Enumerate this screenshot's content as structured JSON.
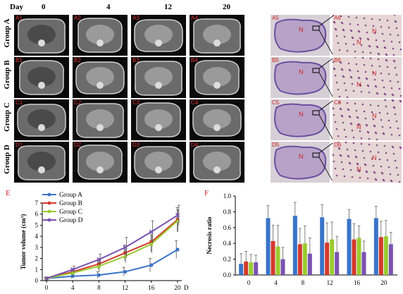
{
  "figure": {
    "day_header": {
      "day_label": "Day",
      "days": [
        "0",
        "4",
        "12",
        "20"
      ]
    },
    "groups": [
      "Group A",
      "Group B",
      "Group C",
      "Group D"
    ],
    "mri_tags": [
      [
        "A1",
        "A2",
        "A3",
        "A4"
      ],
      [
        "B1",
        "B2",
        "B3",
        "B4"
      ],
      [
        "C1",
        "C2",
        "C3",
        "C4"
      ],
      [
        "D1",
        "D2",
        "D3",
        "D4"
      ]
    ],
    "histo_tags": [
      "A5",
      "B5",
      "C5",
      "D5"
    ],
    "zoom_tags": [
      "A6",
      "B6",
      "C6",
      "D6"
    ],
    "necrosis_marker": "N",
    "panel_E": "E",
    "panel_F": "F"
  },
  "chart_data": [
    {
      "type": "line",
      "panel": "E",
      "xlabel": "D",
      "ylabel": "Tumor volume (cm³)",
      "x": [
        0,
        4,
        8,
        12,
        16,
        20
      ],
      "xticks": [
        "0",
        "4",
        "8",
        "12",
        "16",
        "20"
      ],
      "ylim": [
        0,
        7
      ],
      "yticks": [
        "0",
        "1",
        "2",
        "3",
        "4",
        "5",
        "6",
        "7"
      ],
      "legend_position": "top-left",
      "series": [
        {
          "name": "Group A",
          "color": "#3a74c8",
          "values": [
            0.2,
            0.4,
            0.5,
            0.8,
            1.4,
            2.8
          ],
          "errors": [
            0.1,
            0.2,
            0.3,
            0.4,
            0.6,
            0.8
          ]
        },
        {
          "name": "Group B",
          "color": "#d23a2c",
          "values": [
            0.2,
            0.8,
            1.5,
            2.5,
            3.5,
            5.5
          ],
          "errors": [
            0.1,
            0.3,
            0.5,
            0.7,
            0.9,
            1.1
          ]
        },
        {
          "name": "Group C",
          "color": "#9acb2f",
          "values": [
            0.2,
            0.7,
            1.3,
            2.2,
            3.3,
            5.4
          ],
          "errors": [
            0.1,
            0.3,
            0.5,
            0.6,
            0.8,
            1.0
          ]
        },
        {
          "name": "Group D",
          "color": "#7a52b0",
          "values": [
            0.2,
            1.0,
            1.9,
            3.0,
            4.4,
            5.9
          ],
          "errors": [
            0.1,
            0.3,
            0.5,
            0.9,
            1.0,
            0.9
          ]
        }
      ]
    },
    {
      "type": "bar",
      "panel": "F",
      "ylabel": "Necrosis ratio",
      "categories": [
        "0",
        "4",
        "8",
        "12",
        "16",
        "20"
      ],
      "ylim": [
        0,
        1.0
      ],
      "yticks": [
        "0.0",
        "0.2",
        "0.4",
        "0.6",
        "0.8",
        "1.0"
      ],
      "grid": false,
      "series": [
        {
          "name": "Group A",
          "color": "#3a74c8",
          "values": [
            0.14,
            0.72,
            0.75,
            0.73,
            0.71,
            0.72
          ],
          "errors": [
            0.13,
            0.16,
            0.17,
            0.16,
            0.12,
            0.15
          ]
        },
        {
          "name": "Group B",
          "color": "#d23a2c",
          "values": [
            0.17,
            0.43,
            0.39,
            0.41,
            0.45,
            0.48
          ],
          "errors": [
            0.13,
            0.2,
            0.2,
            0.25,
            0.2,
            0.2
          ]
        },
        {
          "name": "Group C",
          "color": "#9acb2f",
          "values": [
            0.16,
            0.36,
            0.4,
            0.45,
            0.47,
            0.49
          ],
          "errors": [
            0.1,
            0.27,
            0.22,
            0.22,
            0.15,
            0.2
          ]
        },
        {
          "name": "Group D",
          "color": "#7a52b0",
          "values": [
            0.16,
            0.2,
            0.27,
            0.29,
            0.29,
            0.39
          ],
          "errors": [
            0.09,
            0.15,
            0.2,
            0.2,
            0.14,
            0.15
          ]
        }
      ]
    }
  ]
}
